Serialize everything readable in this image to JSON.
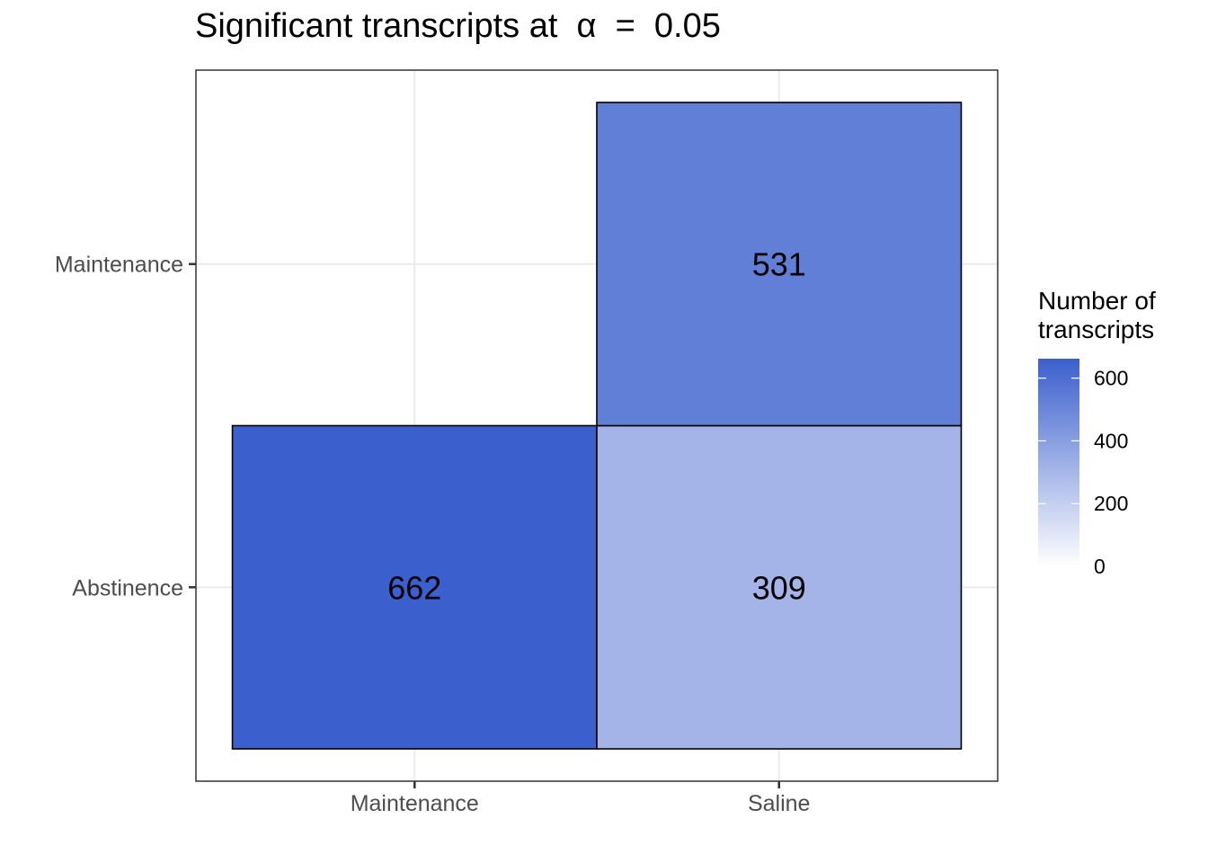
{
  "chart_data": {
    "type": "heatmap",
    "title": "Significant transcripts at  α  =  0.05",
    "x_categories": [
      "Maintenance",
      "Saline"
    ],
    "y_categories": [
      "Abstinence",
      "Maintenance"
    ],
    "cells": [
      {
        "x": "Maintenance",
        "y": "Abstinence",
        "value": 662,
        "label": "662"
      },
      {
        "x": "Saline",
        "y": "Abstinence",
        "value": 309,
        "label": "309"
      },
      {
        "x": "Saline",
        "y": "Maintenance",
        "value": 531,
        "label": "531"
      }
    ],
    "legend": {
      "title_lines": [
        "Number of",
        "transcripts"
      ],
      "ticks": [
        0,
        200,
        400,
        600
      ],
      "tick_labels": [
        "0",
        "200",
        "400",
        "600"
      ],
      "range": [
        0,
        662
      ],
      "low_color": "#ffffff",
      "high_color": "#3b5fcd",
      "placement": "right"
    },
    "grid": true
  }
}
